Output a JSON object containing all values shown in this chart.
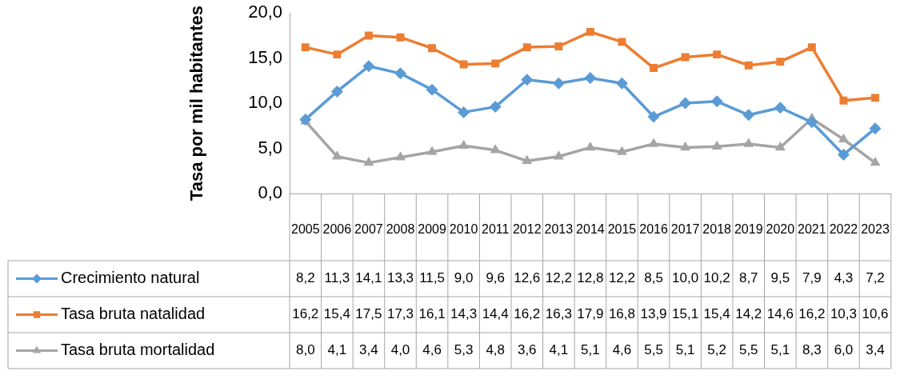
{
  "chart_data": {
    "type": "line",
    "ylabel": "Tasa por mil habitantes",
    "categories": [
      "2005",
      "2006",
      "2007",
      "2008",
      "2009",
      "2010",
      "2011",
      "2012",
      "2013",
      "2014",
      "2015",
      "2016",
      "2017",
      "2018",
      "2019",
      "2020",
      "2021",
      "2022",
      "2023"
    ],
    "series": [
      {
        "name": "Crecimiento natural",
        "color": "#5b9bd5",
        "marker": "diamond",
        "values": [
          8.2,
          11.3,
          14.1,
          13.3,
          11.5,
          9.0,
          9.6,
          12.6,
          12.2,
          12.8,
          12.2,
          8.5,
          10.0,
          10.2,
          8.7,
          9.5,
          7.9,
          4.3,
          7.2
        ],
        "value_labels": [
          "8,2",
          "11,3",
          "14,1",
          "13,3",
          "11,5",
          "9,0",
          "9,6",
          "12,6",
          "12,2",
          "12,8",
          "12,2",
          "8,5",
          "10,0",
          "10,2",
          "8,7",
          "9,5",
          "7,9",
          "4,3",
          "7,2"
        ]
      },
      {
        "name": "Tasa bruta natalidad",
        "color": "#ed7d31",
        "marker": "square",
        "values": [
          16.2,
          15.4,
          17.5,
          17.3,
          16.1,
          14.3,
          14.4,
          16.2,
          16.3,
          17.9,
          16.8,
          13.9,
          15.1,
          15.4,
          14.2,
          14.6,
          16.2,
          10.3,
          10.6
        ],
        "value_labels": [
          "16,2",
          "15,4",
          "17,5",
          "17,3",
          "16,1",
          "14,3",
          "14,4",
          "16,2",
          "16,3",
          "17,9",
          "16,8",
          "13,9",
          "15,1",
          "15,4",
          "14,2",
          "14,6",
          "16,2",
          "10,3",
          "10,6"
        ]
      },
      {
        "name": "Tasa bruta mortalidad",
        "color": "#a5a5a5",
        "marker": "triangle",
        "values": [
          8.0,
          4.1,
          3.4,
          4.0,
          4.6,
          5.3,
          4.8,
          3.6,
          4.1,
          5.1,
          4.6,
          5.5,
          5.1,
          5.2,
          5.5,
          5.1,
          8.3,
          6.0,
          3.4
        ],
        "value_labels": [
          "8,0",
          "4,1",
          "3,4",
          "4,0",
          "4,6",
          "5,3",
          "4,8",
          "3,6",
          "4,1",
          "5,1",
          "4,6",
          "5,5",
          "5,1",
          "5,2",
          "5,5",
          "5,1",
          "8,3",
          "6,0",
          "3,4"
        ]
      }
    ],
    "ylim": [
      0,
      20
    ],
    "yticks": [
      {
        "value": 0,
        "label": "0,0"
      },
      {
        "value": 5,
        "label": "5,0"
      },
      {
        "value": 10,
        "label": "10,0"
      },
      {
        "value": 15,
        "label": "15,0"
      },
      {
        "value": 20,
        "label": "20,0"
      }
    ],
    "grid": false,
    "legend": "bottom",
    "line_style": "solid"
  }
}
